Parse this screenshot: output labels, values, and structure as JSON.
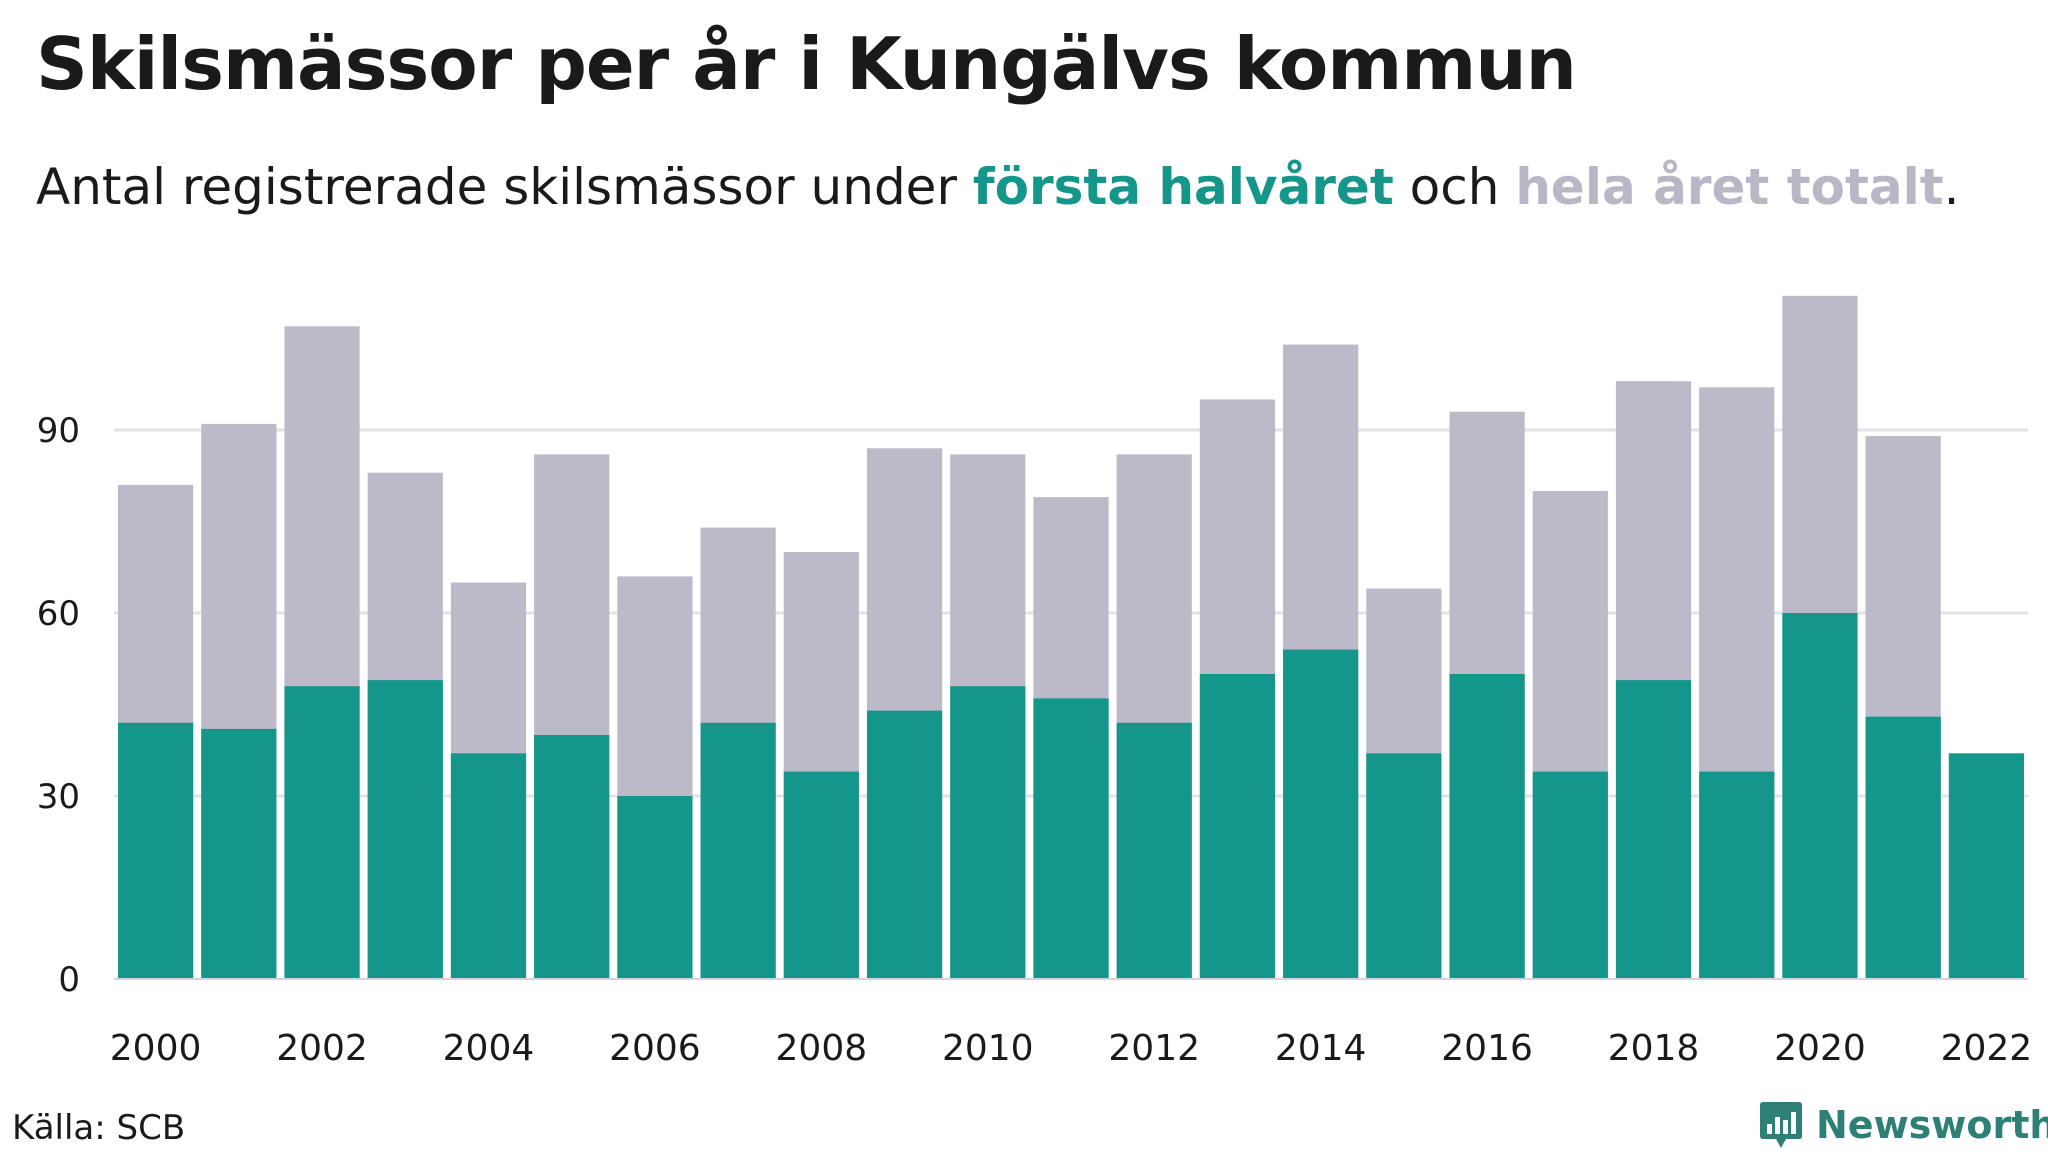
{
  "title": "Skilsmässor per år i Kungälvs kommun",
  "subtitle": {
    "part1": "Antal registrerade skilsmässor under ",
    "highlight1": "första halvåret",
    "part2": " och ",
    "highlight2": "hela året totalt",
    "part3": "."
  },
  "source": "Källa: SCB",
  "brand": {
    "name": "Newsworthy",
    "icon": "newsworthy-logo-icon"
  },
  "colors": {
    "first_half": "#15968a",
    "total": "#bcbac9",
    "grid": "#e3e3e7",
    "text": "#1a1a1a"
  },
  "chart_data": {
    "type": "bar",
    "title": "Skilsmässor per år i Kungälvs kommun",
    "categories": [
      2000,
      2001,
      2002,
      2003,
      2004,
      2005,
      2006,
      2007,
      2008,
      2009,
      2010,
      2011,
      2012,
      2013,
      2014,
      2015,
      2016,
      2017,
      2018,
      2019,
      2020,
      2021,
      2022
    ],
    "x_tick_labels": [
      "2000",
      "2002",
      "2004",
      "2006",
      "2008",
      "2010",
      "2012",
      "2014",
      "2016",
      "2018",
      "2020",
      "2022"
    ],
    "series": [
      {
        "name": "hela året totalt",
        "values": [
          81,
          91,
          107,
          83,
          65,
          86,
          66,
          74,
          70,
          87,
          86,
          79,
          86,
          95,
          104,
          64,
          93,
          80,
          98,
          97,
          112,
          89,
          null
        ]
      },
      {
        "name": "första halvåret",
        "values": [
          42,
          41,
          48,
          49,
          37,
          40,
          30,
          42,
          34,
          44,
          48,
          46,
          42,
          50,
          54,
          37,
          50,
          34,
          49,
          34,
          60,
          43,
          37
        ]
      }
    ],
    "y_ticks": [
      0,
      30,
      60,
      90
    ],
    "ylim": [
      0,
      120
    ],
    "grid": true,
    "xlabel": "",
    "ylabel": ""
  }
}
